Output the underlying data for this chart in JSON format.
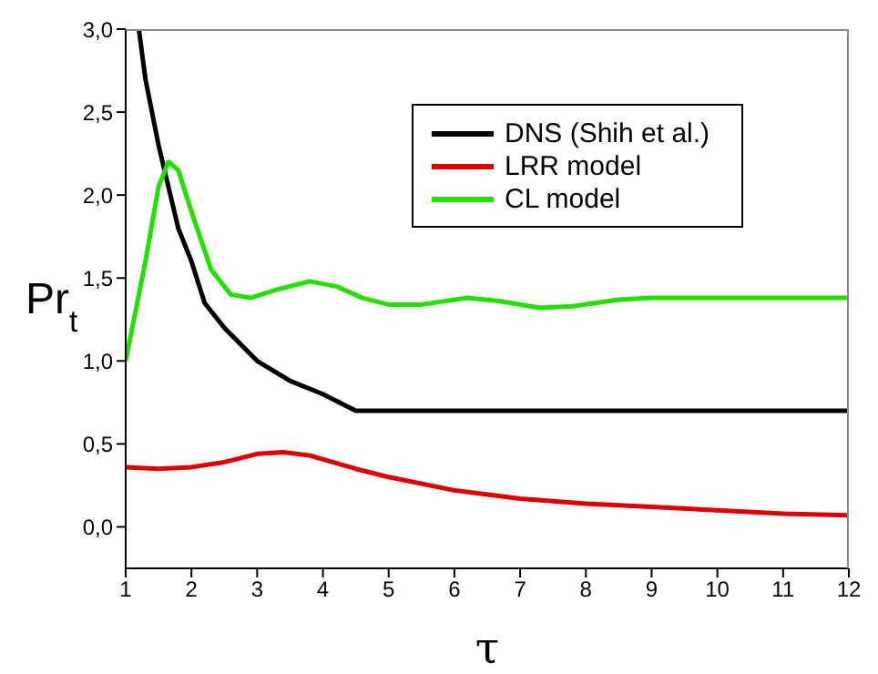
{
  "chart_data": {
    "type": "line",
    "xlabel": "τ",
    "ylabel": "Pr$_{t}$",
    "xlim": [
      1,
      12
    ],
    "xticks": [
      1,
      2,
      3,
      4,
      5,
      6,
      7,
      8,
      9,
      10,
      11,
      12
    ],
    "ylim": [
      -0.25,
      3.0
    ],
    "yticks": [
      {
        "value": 0,
        "label": "0,0"
      },
      {
        "value": 0.5,
        "label": "0,5"
      },
      {
        "value": 1,
        "label": "1,0"
      },
      {
        "value": 1.5,
        "label": "1,5"
      },
      {
        "value": 2,
        "label": "2,0"
      },
      {
        "value": 2.5,
        "label": "2,5"
      },
      {
        "value": 3,
        "label": "3,0"
      }
    ],
    "grid": false,
    "legend": "top right",
    "marker": "none",
    "line_style": "solid",
    "series": [
      {
        "name": "DNS (Shih et al.)",
        "color": "#000000",
        "x": [
          1.2,
          1.3,
          1.5,
          1.8,
          2.0,
          2.2,
          2.5,
          3.0,
          3.5,
          4.0,
          4.5,
          12
        ],
        "values": [
          3.0,
          2.7,
          2.3,
          1.8,
          1.6,
          1.35,
          1.2,
          1.0,
          0.88,
          0.8,
          0.7,
          0.7
        ]
      },
      {
        "name": "LRR model",
        "color": "#e00000",
        "x": [
          1,
          1.5,
          2,
          2.5,
          3,
          3.4,
          3.8,
          4.5,
          5,
          6,
          7,
          8,
          9,
          10,
          11,
          12
        ],
        "values": [
          0.36,
          0.35,
          0.36,
          0.39,
          0.44,
          0.45,
          0.43,
          0.35,
          0.3,
          0.22,
          0.17,
          0.14,
          0.12,
          0.1,
          0.08,
          0.07
        ]
      },
      {
        "name": "CL model",
        "color": "#22e000",
        "x": [
          1,
          1.3,
          1.5,
          1.65,
          1.8,
          2.0,
          2.3,
          2.6,
          2.9,
          3.3,
          3.8,
          4.2,
          4.6,
          5,
          5.5,
          6.2,
          6.7,
          7.3,
          7.8,
          8.5,
          9,
          12
        ],
        "values": [
          1.0,
          1.6,
          2.05,
          2.2,
          2.15,
          1.9,
          1.55,
          1.4,
          1.38,
          1.43,
          1.48,
          1.45,
          1.38,
          1.34,
          1.34,
          1.38,
          1.36,
          1.32,
          1.33,
          1.37,
          1.38,
          1.38
        ]
      }
    ]
  }
}
